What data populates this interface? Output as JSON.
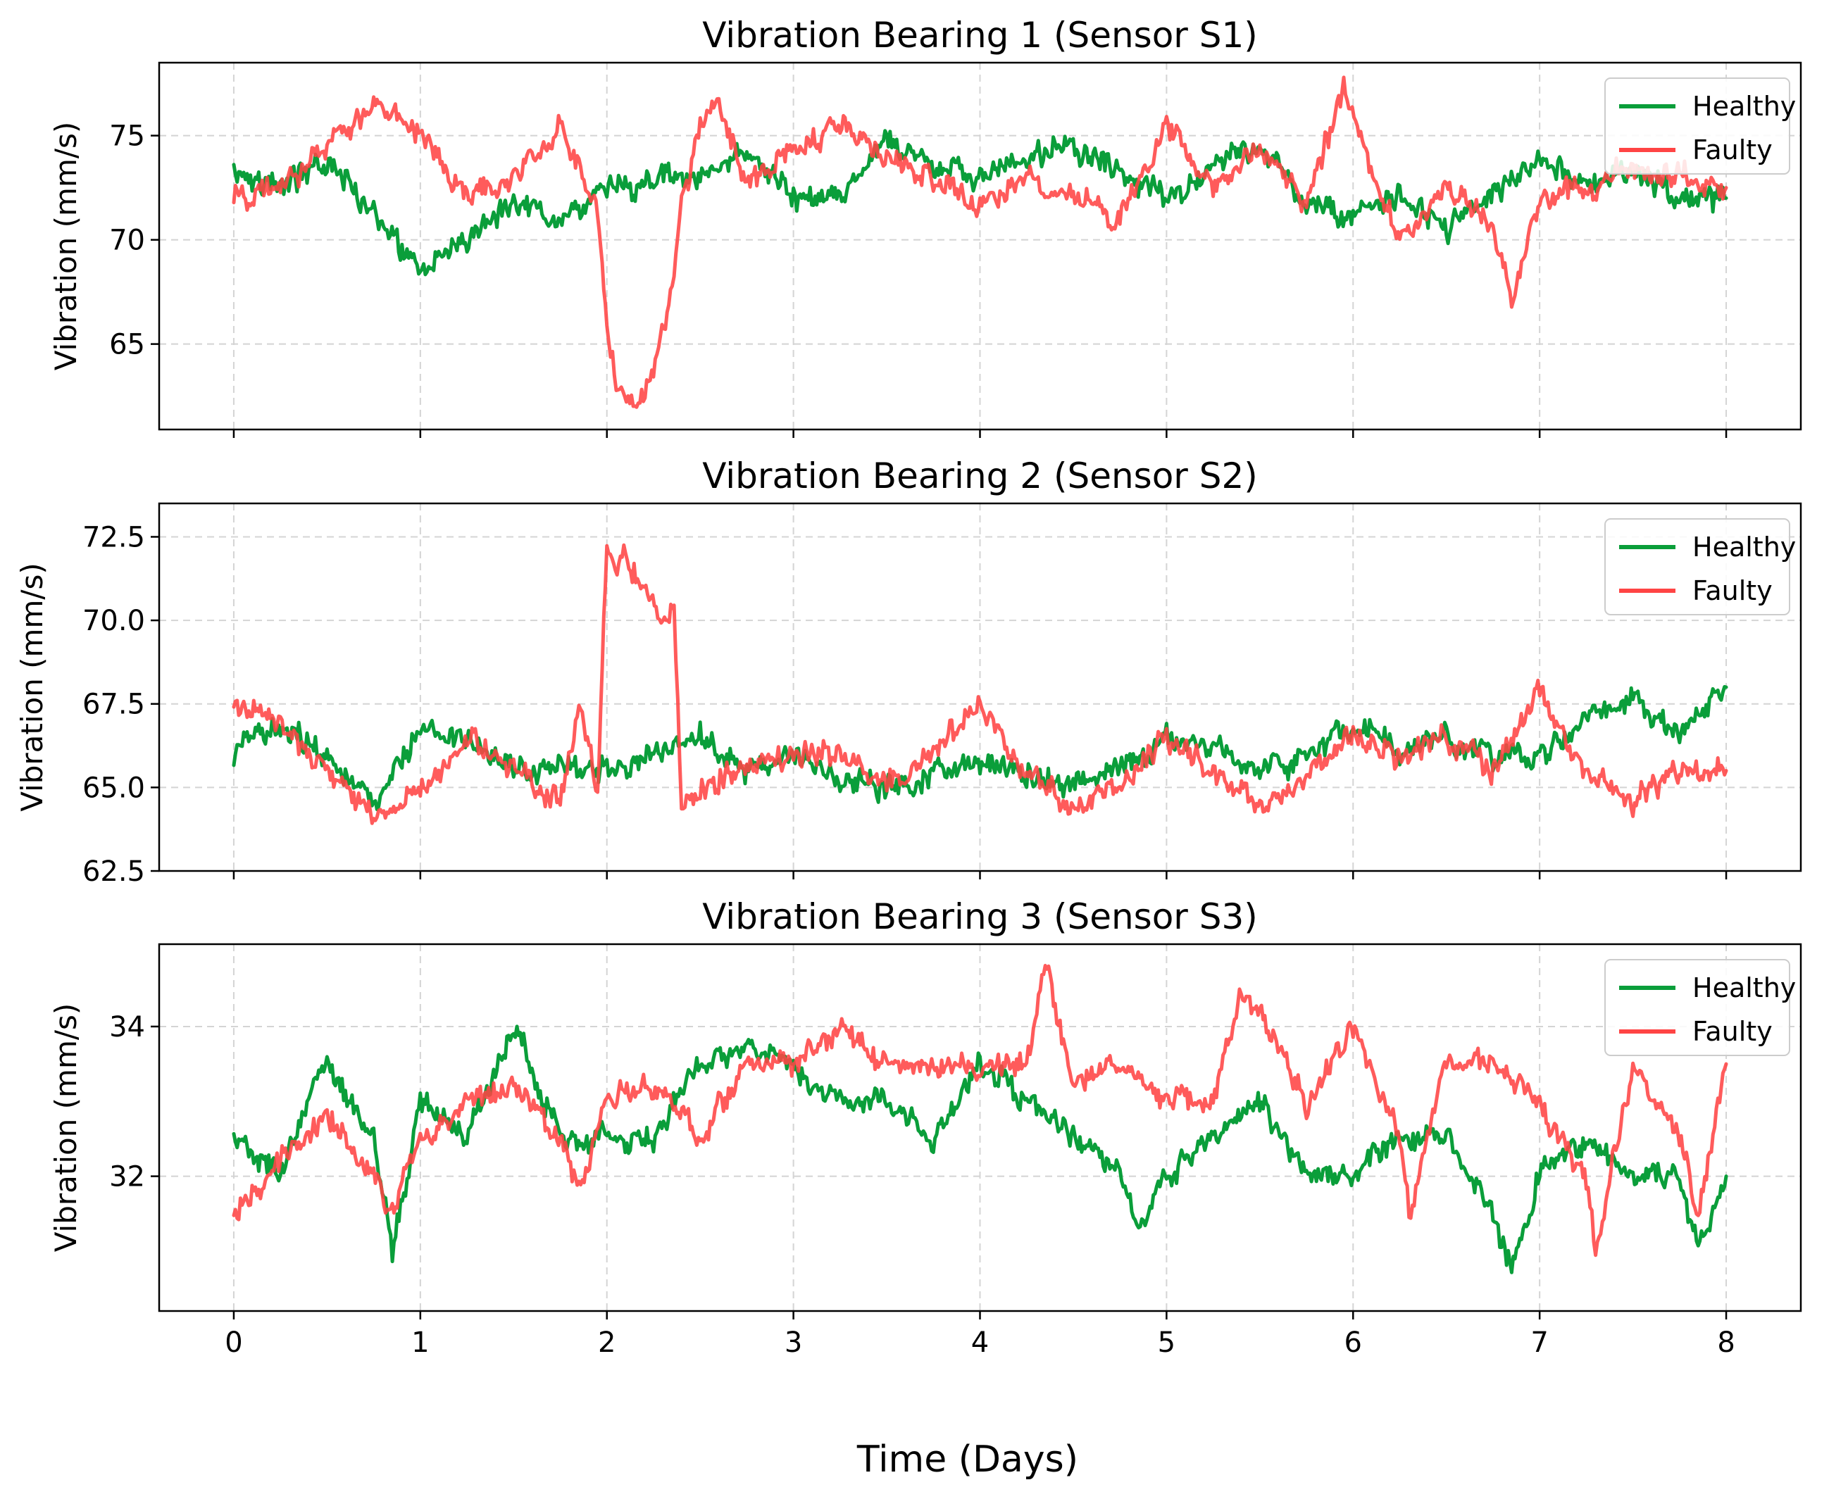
{
  "figure": {
    "xlabel": "Time (Days)"
  },
  "chart_data": [
    {
      "type": "line",
      "title": "Vibration Bearing 1 (Sensor S1)",
      "xlabel": "",
      "ylabel": "Vibration (mm/s)",
      "xlim": [
        -0.4,
        8.4
      ],
      "ylim": [
        60.9,
        78.5
      ],
      "xticks": [
        0,
        1,
        2,
        3,
        4,
        5,
        6,
        7,
        8
      ],
      "xtick_labels": [],
      "yticks": [
        65,
        70,
        75
      ],
      "ytick_labels": [
        "65",
        "70",
        "75"
      ],
      "grid": true,
      "legend": "top-right",
      "series": [
        {
          "name": "Healthy",
          "color": "#0a9e3a",
          "x": [
            0,
            0.25,
            0.5,
            0.75,
            1,
            1.25,
            1.5,
            1.75,
            2,
            2.25,
            2.5,
            2.75,
            3,
            3.25,
            3.5,
            3.75,
            4,
            4.25,
            4.5,
            4.75,
            5,
            5.25,
            5.5,
            5.75,
            6,
            6.25,
            6.5,
            6.75,
            7,
            7.25,
            7.5,
            7.75,
            8
          ],
          "values": [
            73.5,
            72.5,
            73.8,
            71.5,
            68.2,
            70.2,
            72.0,
            71.0,
            72.5,
            72.8,
            73.0,
            74.2,
            72.0,
            71.8,
            74.8,
            73.5,
            73.0,
            73.8,
            74.5,
            73.2,
            72.0,
            73.5,
            74.5,
            72.0,
            71.0,
            72.2,
            70.5,
            72.0,
            74.0,
            72.5,
            73.5,
            72.0,
            72.0
          ]
        },
        {
          "name": "Faulty",
          "color": "#ff4444",
          "x": [
            0,
            0.25,
            0.5,
            0.75,
            1,
            1.25,
            1.5,
            1.75,
            1.95,
            2,
            2.05,
            2.15,
            2.25,
            2.35,
            2.4,
            2.5,
            2.6,
            2.75,
            3,
            3.25,
            3.5,
            3.75,
            4,
            4.25,
            4.5,
            4.75,
            5,
            5.25,
            5.5,
            5.75,
            5.95,
            6.25,
            6.5,
            6.75,
            6.85,
            7,
            7.25,
            7.5,
            7.75,
            8
          ],
          "values": [
            72.0,
            72.5,
            74.5,
            76.5,
            75.2,
            72.0,
            73.0,
            75.5,
            71.0,
            66.0,
            63.0,
            62.0,
            64.0,
            67.5,
            72.0,
            75.0,
            76.8,
            72.5,
            74.5,
            75.5,
            74.0,
            73.0,
            71.5,
            73.0,
            72.0,
            71.0,
            75.5,
            72.5,
            74.5,
            72.0,
            77.0,
            70.0,
            72.5,
            70.5,
            67.0,
            72.0,
            72.5,
            73.5,
            73.0,
            72.5
          ]
        }
      ]
    },
    {
      "type": "line",
      "title": "Vibration Bearing 2 (Sensor S2)",
      "xlabel": "",
      "ylabel": "Vibration (mm/s)",
      "xlim": [
        -0.4,
        8.4
      ],
      "ylim": [
        62.5,
        73.5
      ],
      "xticks": [
        0,
        1,
        2,
        3,
        4,
        5,
        6,
        7,
        8
      ],
      "xtick_labels": [],
      "yticks": [
        62.5,
        65.0,
        67.5,
        70.0,
        72.5
      ],
      "ytick_labels": [
        "62.5",
        "65.0",
        "67.5",
        "70.0",
        "72.5"
      ],
      "grid": true,
      "legend": "top-right",
      "series": [
        {
          "name": "Healthy",
          "color": "#0a9e3a",
          "x": [
            0,
            0.25,
            0.5,
            0.75,
            1,
            1.25,
            1.5,
            1.75,
            2,
            2.25,
            2.5,
            2.75,
            3,
            3.25,
            3.5,
            3.75,
            4,
            4.25,
            4.5,
            4.75,
            5,
            5.25,
            5.5,
            5.75,
            6,
            6.25,
            6.5,
            6.75,
            7,
            7.25,
            7.5,
            7.75,
            8
          ],
          "values": [
            66.0,
            67.0,
            66.0,
            64.5,
            66.8,
            66.5,
            65.5,
            65.8,
            65.5,
            66.0,
            66.5,
            65.5,
            66.0,
            65.2,
            65.0,
            65.5,
            65.8,
            65.5,
            65.0,
            65.5,
            66.5,
            66.2,
            65.5,
            66.0,
            66.8,
            66.2,
            66.5,
            66.0,
            66.0,
            67.0,
            67.5,
            66.5,
            68.0
          ]
        },
        {
          "name": "Faulty",
          "color": "#ff4444",
          "x": [
            0,
            0.25,
            0.5,
            0.75,
            1,
            1.25,
            1.5,
            1.75,
            1.85,
            1.95,
            2,
            2.1,
            2.2,
            2.3,
            2.36,
            2.4,
            2.5,
            2.75,
            3,
            3.25,
            3.5,
            3.75,
            4,
            4.25,
            4.5,
            4.75,
            5,
            5.25,
            5.5,
            5.75,
            6,
            6.25,
            6.5,
            6.75,
            7,
            7.25,
            7.5,
            7.75,
            8
          ],
          "values": [
            67.5,
            67.0,
            65.5,
            64.0,
            65.0,
            66.5,
            65.5,
            64.5,
            67.5,
            65.0,
            72.0,
            71.8,
            71.0,
            70.0,
            70.5,
            64.5,
            65.0,
            65.5,
            66.0,
            66.0,
            65.0,
            66.0,
            67.5,
            65.5,
            64.5,
            65.0,
            66.5,
            65.5,
            64.5,
            65.5,
            66.5,
            66.0,
            66.5,
            65.5,
            68.0,
            65.5,
            64.5,
            65.5,
            65.5
          ]
        }
      ]
    },
    {
      "type": "line",
      "title": "Vibration Bearing 3 (Sensor S3)",
      "xlabel": "Time (Days)",
      "ylabel": "Vibration (mm/s)",
      "xlim": [
        -0.4,
        8.4
      ],
      "ylim": [
        30.2,
        35.1
      ],
      "xticks": [
        0,
        1,
        2,
        3,
        4,
        5,
        6,
        7,
        8
      ],
      "xtick_labels": [
        "0",
        "1",
        "2",
        "3",
        "4",
        "5",
        "6",
        "7",
        "8"
      ],
      "yticks": [
        32,
        34
      ],
      "ytick_labels": [
        "32",
        "34"
      ],
      "grid": true,
      "legend": "top-right",
      "series": [
        {
          "name": "Healthy",
          "color": "#0a9e3a",
          "x": [
            0,
            0.25,
            0.5,
            0.75,
            0.85,
            1,
            1.25,
            1.5,
            1.75,
            2,
            2.25,
            2.5,
            2.75,
            3,
            3.25,
            3.5,
            3.75,
            4,
            4.25,
            4.5,
            4.75,
            4.85,
            5,
            5.25,
            5.5,
            5.75,
            6,
            6.25,
            6.5,
            6.75,
            6.85,
            7,
            7.25,
            7.5,
            7.75,
            7.85,
            8
          ],
          "values": [
            32.5,
            32.0,
            33.5,
            32.5,
            31.0,
            33.0,
            32.5,
            34.0,
            32.5,
            32.5,
            32.5,
            33.5,
            33.8,
            33.5,
            33.0,
            33.0,
            32.5,
            33.5,
            33.0,
            32.5,
            32.0,
            31.3,
            32.0,
            32.5,
            33.0,
            32.0,
            32.0,
            32.5,
            32.5,
            31.5,
            30.8,
            32.0,
            32.5,
            32.0,
            32.0,
            31.0,
            32.0
          ]
        },
        {
          "name": "Faulty",
          "color": "#ff4444",
          "x": [
            0,
            0.25,
            0.5,
            0.75,
            0.85,
            1,
            1.25,
            1.5,
            1.75,
            1.85,
            2,
            2.25,
            2.5,
            2.75,
            3,
            3.25,
            3.5,
            3.75,
            4,
            4.25,
            4.35,
            4.5,
            4.75,
            5,
            5.25,
            5.4,
            5.5,
            5.75,
            6,
            6.25,
            6.3,
            6.5,
            6.75,
            7,
            7.25,
            7.3,
            7.5,
            7.75,
            7.85,
            8
          ],
          "values": [
            31.5,
            32.2,
            32.8,
            32.0,
            31.5,
            32.5,
            33.0,
            33.2,
            32.5,
            31.8,
            33.0,
            33.2,
            32.5,
            33.5,
            33.5,
            34.0,
            33.5,
            33.5,
            33.5,
            33.5,
            34.8,
            33.2,
            33.5,
            33.0,
            33.0,
            34.5,
            34.2,
            33.0,
            34.0,
            32.5,
            31.5,
            33.5,
            33.5,
            33.0,
            32.0,
            31.0,
            33.5,
            32.5,
            31.5,
            33.5
          ]
        }
      ]
    }
  ]
}
